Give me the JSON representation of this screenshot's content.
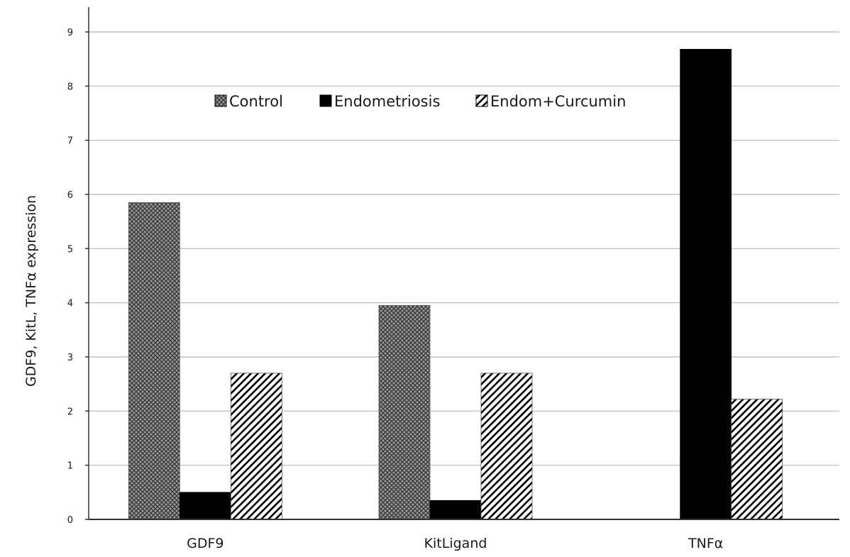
{
  "chart_data": {
    "type": "bar",
    "title": "",
    "xlabel": "",
    "ylabel": "GDF9, KitL, TNFα expression",
    "categories": [
      "GDF9",
      "KitLigand",
      "TNFα"
    ],
    "series": [
      {
        "name": "Control",
        "values": [
          5.85,
          3.95,
          0
        ],
        "pattern": "crosshatch",
        "color": "#8a8a8a"
      },
      {
        "name": "Endometriosis",
        "values": [
          0.5,
          0.35,
          8.68
        ],
        "pattern": "solid",
        "color": "#000000"
      },
      {
        "name": "Endom+Curcumin",
        "values": [
          2.7,
          2.7,
          2.22
        ],
        "pattern": "diagonal",
        "color": "#000000"
      }
    ],
    "ylim": [
      0,
      9
    ],
    "yticks": [
      "0",
      "1",
      "2",
      "3",
      "4",
      "5",
      "6",
      "7",
      "8",
      "9"
    ],
    "grid": true,
    "legend_position": "top-center"
  }
}
